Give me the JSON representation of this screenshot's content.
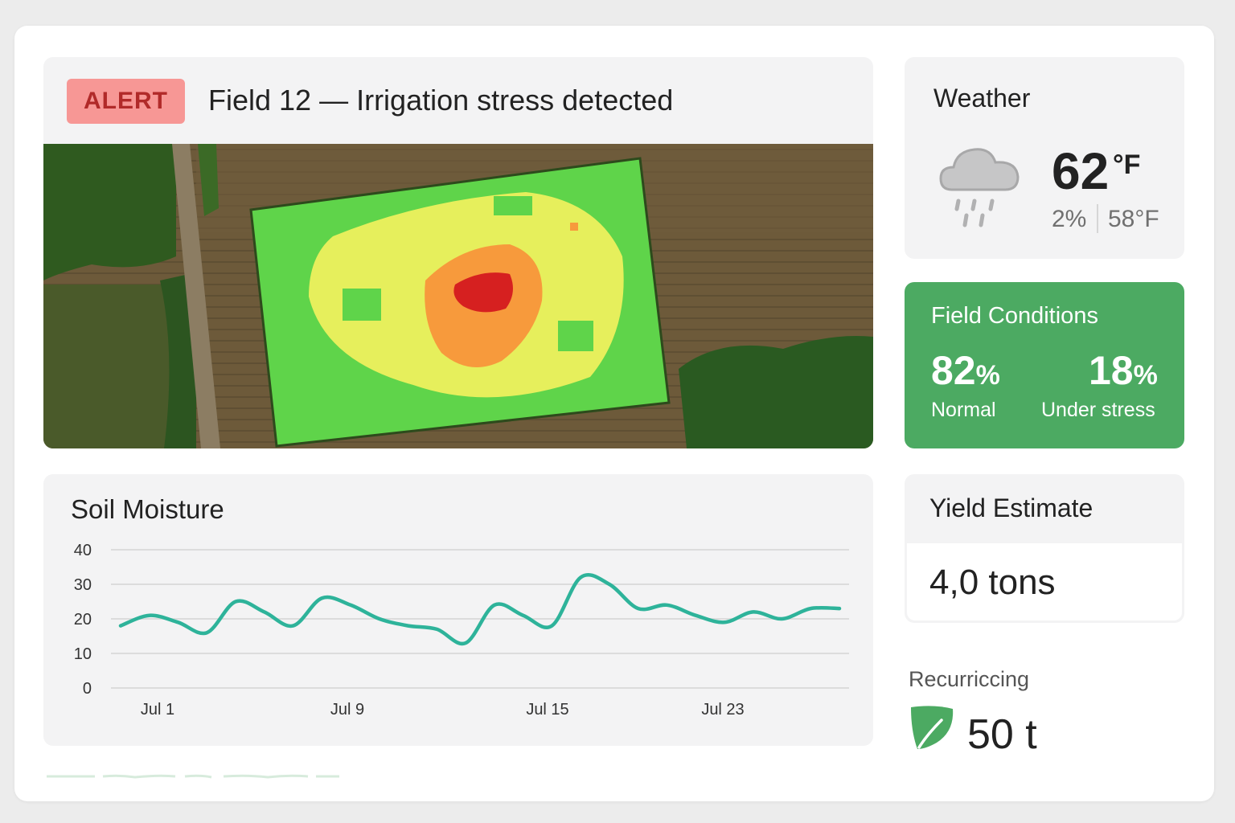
{
  "alert": {
    "badge": "ALERT",
    "title": "Field 12 — Irrigation stress detected"
  },
  "weather": {
    "title": "Weather",
    "icon": "rain-cloud-icon",
    "temperature": "62",
    "temperature_unit": "°F",
    "precipitation": "2%",
    "low": "58°F"
  },
  "field_conditions": {
    "title": "Field Conditions",
    "normal_value": "82",
    "normal_unit": "%",
    "normal_label": "Normal",
    "stress_value": "18",
    "stress_unit": "%",
    "stress_label": "Under stress",
    "color": "#4caa62"
  },
  "soil_moisture": {
    "title": "Soil Moisture"
  },
  "yield": {
    "title": "Yield Estimate",
    "value": "4,0 tons"
  },
  "recurring": {
    "label": "Recurriccing",
    "value": "50 t",
    "icon": "leaf-icon"
  },
  "colors": {
    "alert_bg": "#f79795",
    "alert_text": "#b12a29",
    "line": "#2eb39a",
    "stress_red": "#d62020",
    "stress_orange": "#f79a3c",
    "stress_yellow": "#e6ef5c",
    "healthy_green": "#5fd44a"
  },
  "chart_data": {
    "type": "line",
    "title": "Soil Moisture",
    "xlabel": "",
    "ylabel": "",
    "ylim": [
      0,
      40
    ],
    "yticks": [
      "40",
      "30",
      "20",
      "10",
      "0"
    ],
    "xticks": [
      "Jul 1",
      "Jul 9",
      "Jul 15",
      "Jul 23"
    ],
    "grid": true,
    "series": [
      {
        "values": [
          18,
          21,
          19,
          16,
          25,
          22,
          18,
          26,
          24,
          20,
          18,
          17,
          13,
          24,
          21,
          18,
          32,
          30,
          23,
          24,
          21,
          19,
          22,
          20,
          23,
          23
        ]
      }
    ]
  }
}
